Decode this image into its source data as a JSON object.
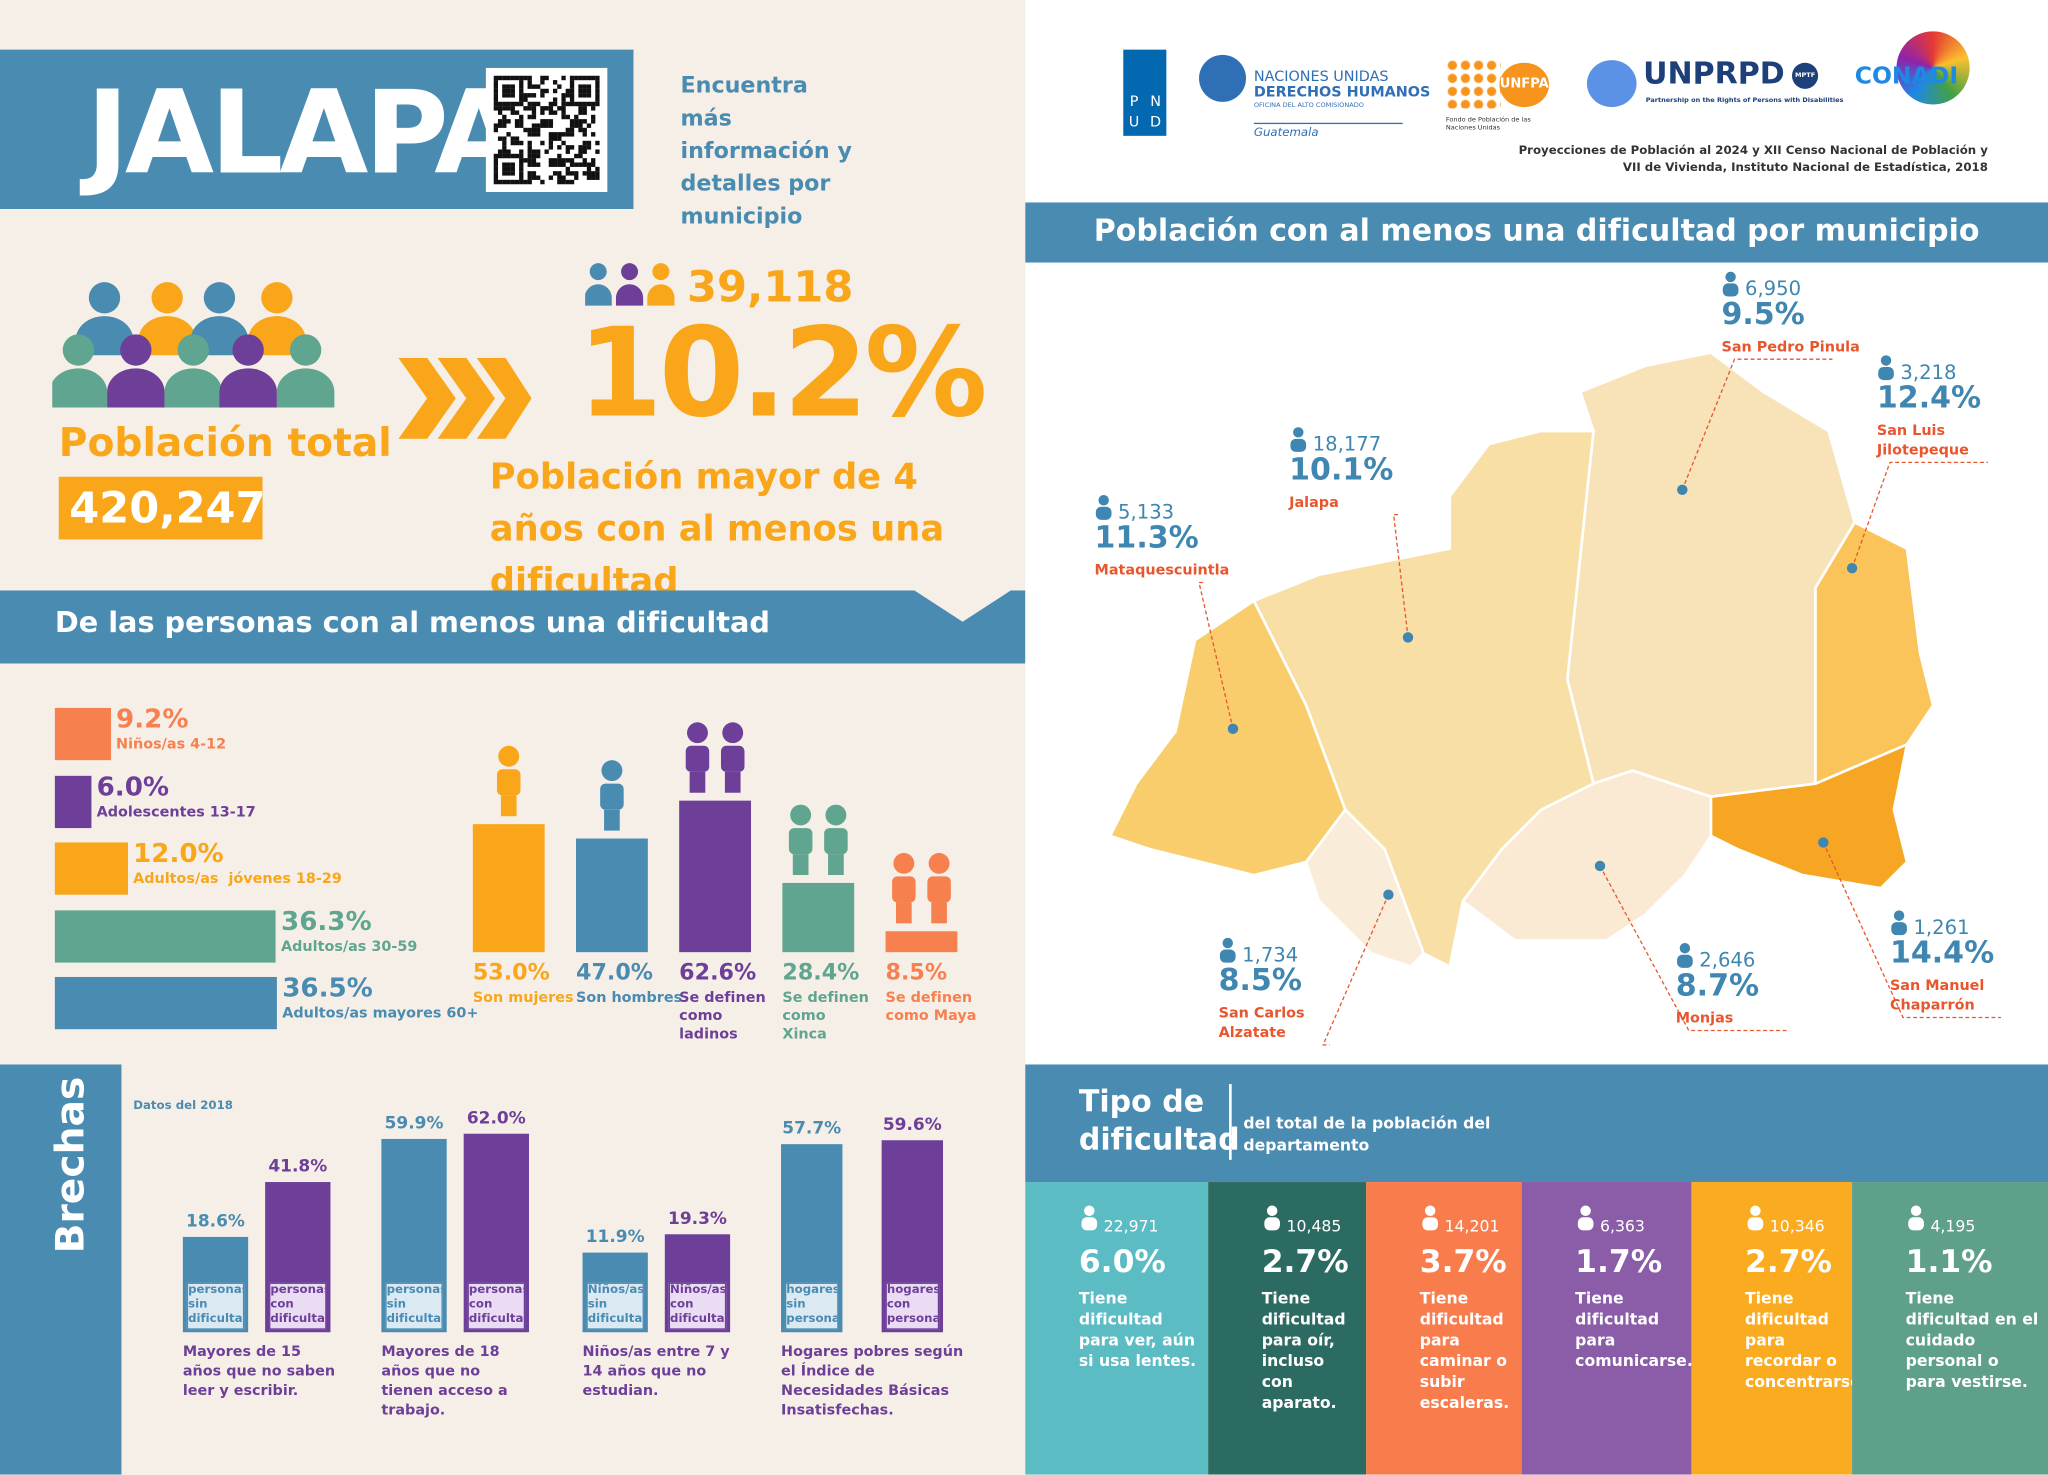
{
  "header": {
    "title": "JALAPA",
    "qr_text": "Encuentra más información y detalles por municipio"
  },
  "logos": {
    "pnud": [
      "P",
      "N",
      "U",
      "D"
    ],
    "ohchr": [
      "NACIONES UNIDAS",
      "DERECHOS HUMANOS",
      "OFICINA DEL ALTO COMISIONADO",
      "Guatemala"
    ],
    "unfpa": [
      "UNFPA",
      "Fondo de Población de las Naciones Unidas"
    ],
    "unprpd": [
      "UNPRPD",
      "MPTF",
      "Partnership on the Rights of Persons with Disabilities"
    ],
    "conadi": "CONADI"
  },
  "source": "Proyecciones de Población al 2024 y XII Censo Nacional de Población y VII de Vivienda, Instituto Nacional de Estadística, 2018",
  "summary": {
    "total_label": "Población total",
    "total": "420,247",
    "count": "39,118",
    "percent": "10.2%",
    "description": "Población mayor de 4 años con al menos una dificultad"
  },
  "groups": {
    "title": "De las personas con al menos una dificultad",
    "age": [
      {
        "value": 9.2,
        "label": "9.2%",
        "name": "Niños/as 4-12",
        "color": "#f7804f"
      },
      {
        "value": 6.0,
        "label": "6.0%",
        "name": "Adolescentes 13-17",
        "color": "#6d3f98"
      },
      {
        "value": 12.0,
        "label": "12.0%",
        "name": "Adultos/as  jóvenes 18-29",
        "color": "#f9a61a"
      },
      {
        "value": 36.3,
        "label": "36.3%",
        "name": "Adultos/as 30-59",
        "color": "#5fa58f"
      },
      {
        "value": 36.5,
        "label": "36.5%",
        "name": "Adultos/as mayores 60+",
        "color": "#4a8bb1"
      }
    ],
    "identity": [
      {
        "value": 53.0,
        "label": "53.0%",
        "name": "Son mujeres",
        "color": "#f9a61a"
      },
      {
        "value": 47.0,
        "label": "47.0%",
        "name": "Son hombres",
        "color": "#4a8bb1"
      },
      {
        "value": 62.6,
        "label": "62.6%",
        "name": "Se definen como ladinos",
        "color": "#6d3f98"
      },
      {
        "value": 28.4,
        "label": "28.4%",
        "name": "Se definen como Xinca",
        "color": "#5fa58f"
      },
      {
        "value": 8.5,
        "label": "8.5%",
        "name": "Se definen como Maya",
        "color": "#f7804f"
      }
    ]
  },
  "map": {
    "title": "Población con al menos una dificultad por municipio",
    "municipalities": [
      {
        "name": "San Pedro Pinula",
        "count": "6,950",
        "percent": "9.5%"
      },
      {
        "name": "San Luis Jilotepeque",
        "count": "3,218",
        "percent": "12.4%"
      },
      {
        "name": "Jalapa",
        "count": "18,177",
        "percent": "10.1%"
      },
      {
        "name": "Mataquescuintla",
        "count": "5,133",
        "percent": "11.3%"
      },
      {
        "name": "San Carlos Alzatate",
        "count": "1,734",
        "percent": "8.5%"
      },
      {
        "name": "Monjas",
        "count": "2,646",
        "percent": "8.7%"
      },
      {
        "name": "San Manuel Chaparrón",
        "count": "1,261",
        "percent": "14.4%"
      }
    ]
  },
  "gaps": {
    "title": "Brechas",
    "note": "Datos del 2018",
    "groups": [
      {
        "caption": "Mayores de 15 años que no saben leer y escribir.",
        "bars": [
          {
            "value": 18.6,
            "label": "18.6%",
            "name": "personas sin dificultad"
          },
          {
            "value": 41.8,
            "label": "41.8%",
            "name": "personas con dificultad"
          }
        ]
      },
      {
        "caption": "Mayores de 18 años que no tienen acceso a trabajo.",
        "bars": [
          {
            "value": 59.9,
            "label": "59.9%",
            "name": "personas sin dificultad"
          },
          {
            "value": 62.0,
            "label": "62.0%",
            "name": "personas con dificultad"
          }
        ]
      },
      {
        "caption": "Niños/as entre 7 y 14 años que no estudian.",
        "bars": [
          {
            "value": 11.9,
            "label": "11.9%",
            "name": "Niños/as sin dificultad"
          },
          {
            "value": 19.3,
            "label": "19.3%",
            "name": "Niños/as con dificultad"
          }
        ]
      },
      {
        "caption": "Hogares pobres según el Índice de Necesidades Básicas Insatisfechas.",
        "bars": [
          {
            "value": 57.7,
            "label": "57.7%",
            "name": "hogares sin personas con dificultad"
          },
          {
            "value": 59.6,
            "label": "59.6%",
            "name": "hogares con personas con dificultad"
          }
        ]
      }
    ]
  },
  "types": {
    "title": "Tipo de dificultad",
    "subtitle": "del total de la población del departamento",
    "items": [
      {
        "count": "22,971",
        "percent": "6.0%",
        "description": "Tiene dificultad para ver, aún si usa lentes.",
        "color": "#5bbcc4"
      },
      {
        "count": "10,485",
        "percent": "2.7%",
        "description": "Tiene dificultad para oír, incluso con aparato.",
        "color": "#2c6b62"
      },
      {
        "count": "14,201",
        "percent": "3.7%",
        "description": "Tiene dificultad para caminar o subir escaleras.",
        "color": "#f97c4c"
      },
      {
        "count": "6,363",
        "percent": "1.7%",
        "description": "Tiene dificultad para comunicarse.",
        "color": "#8b5ca8"
      },
      {
        "count": "10,346",
        "percent": "2.7%",
        "description": "Tiene dificultad para recordar o concentrarse.",
        "color": "#fbab1f"
      },
      {
        "count": "4,195",
        "percent": "1.1%",
        "description": "Tiene dificultad en el cuidado personal o para vestirse.",
        "color": "#5fa08a"
      }
    ]
  }
}
